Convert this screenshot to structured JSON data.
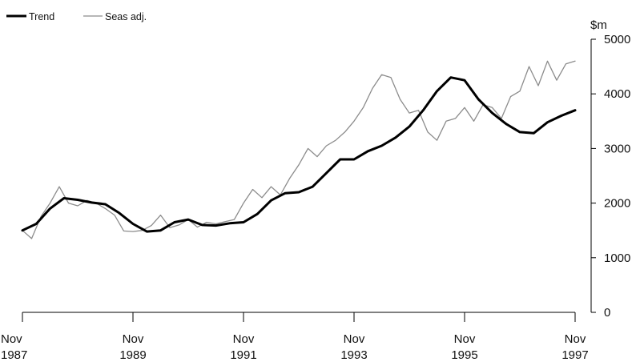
{
  "chart_data": {
    "type": "line",
    "title": "",
    "xlabel": "",
    "ylabel": "$m",
    "ylim": [
      0,
      5000
    ],
    "yticks": [
      "0",
      "1000",
      "2000",
      "3000",
      "4000",
      "5000"
    ],
    "xlim": [
      "1987-11",
      "1997-11"
    ],
    "xticks": [
      {
        "month": "Nov",
        "year": "1987"
      },
      {
        "month": "Nov",
        "year": "1989"
      },
      {
        "month": "Nov",
        "year": "1991"
      },
      {
        "month": "Nov",
        "year": "1993"
      },
      {
        "month": "Nov",
        "year": "1995"
      },
      {
        "month": "Nov",
        "year": "1997"
      }
    ],
    "grid": false,
    "legend_position": "top-left",
    "series": [
      {
        "name": "Trend",
        "color": "#000000",
        "style": "thick",
        "points": [
          [
            "1987-11",
            1500
          ],
          [
            "1988-02",
            1620
          ],
          [
            "1988-05",
            1900
          ],
          [
            "1988-08",
            2090
          ],
          [
            "1988-11",
            2060
          ],
          [
            "1989-02",
            2010
          ],
          [
            "1989-05",
            1980
          ],
          [
            "1989-08",
            1820
          ],
          [
            "1989-11",
            1620
          ],
          [
            "1990-02",
            1480
          ],
          [
            "1990-05",
            1500
          ],
          [
            "1990-08",
            1650
          ],
          [
            "1990-11",
            1700
          ],
          [
            "1991-02",
            1600
          ],
          [
            "1991-05",
            1590
          ],
          [
            "1991-08",
            1630
          ],
          [
            "1991-11",
            1650
          ],
          [
            "1992-02",
            1800
          ],
          [
            "1992-05",
            2050
          ],
          [
            "1992-08",
            2180
          ],
          [
            "1992-11",
            2200
          ],
          [
            "1993-02",
            2300
          ],
          [
            "1993-05",
            2550
          ],
          [
            "1993-08",
            2800
          ],
          [
            "1993-11",
            2800
          ],
          [
            "1994-02",
            2950
          ],
          [
            "1994-05",
            3050
          ],
          [
            "1994-08",
            3200
          ],
          [
            "1994-11",
            3400
          ],
          [
            "1995-02",
            3700
          ],
          [
            "1995-05",
            4050
          ],
          [
            "1995-08",
            4300
          ],
          [
            "1995-11",
            4250
          ],
          [
            "1996-02",
            3900
          ],
          [
            "1996-05",
            3650
          ],
          [
            "1996-08",
            3450
          ],
          [
            "1996-11",
            3300
          ],
          [
            "1997-02",
            3280
          ],
          [
            "1997-05",
            3480
          ],
          [
            "1997-08",
            3600
          ],
          [
            "1997-11",
            3700
          ]
        ]
      },
      {
        "name": "Seas adj.",
        "color": "#8c8c8c",
        "style": "thin",
        "points": [
          [
            "1987-11",
            1500
          ],
          [
            "1988-01",
            1350
          ],
          [
            "1988-03",
            1750
          ],
          [
            "1988-05",
            2000
          ],
          [
            "1988-07",
            2300
          ],
          [
            "1988-09",
            2000
          ],
          [
            "1988-11",
            1950
          ],
          [
            "1989-01",
            2050
          ],
          [
            "1989-03",
            2000
          ],
          [
            "1989-05",
            1900
          ],
          [
            "1989-07",
            1780
          ],
          [
            "1989-09",
            1490
          ],
          [
            "1989-11",
            1480
          ],
          [
            "1990-01",
            1500
          ],
          [
            "1990-03",
            1590
          ],
          [
            "1990-05",
            1780
          ],
          [
            "1990-07",
            1550
          ],
          [
            "1990-09",
            1600
          ],
          [
            "1990-11",
            1700
          ],
          [
            "1991-01",
            1560
          ],
          [
            "1991-03",
            1650
          ],
          [
            "1991-05",
            1620
          ],
          [
            "1991-07",
            1660
          ],
          [
            "1991-09",
            1700
          ],
          [
            "1991-11",
            2000
          ],
          [
            "1992-01",
            2250
          ],
          [
            "1992-03",
            2100
          ],
          [
            "1992-05",
            2300
          ],
          [
            "1992-07",
            2150
          ],
          [
            "1992-09",
            2450
          ],
          [
            "1992-11",
            2700
          ],
          [
            "1993-01",
            3000
          ],
          [
            "1993-03",
            2850
          ],
          [
            "1993-05",
            3050
          ],
          [
            "1993-07",
            3150
          ],
          [
            "1993-09",
            3300
          ],
          [
            "1993-11",
            3500
          ],
          [
            "1994-01",
            3750
          ],
          [
            "1994-03",
            4100
          ],
          [
            "1994-05",
            4350
          ],
          [
            "1994-07",
            4300
          ],
          [
            "1994-09",
            3900
          ],
          [
            "1994-11",
            3650
          ],
          [
            "1995-01",
            3700
          ],
          [
            "1995-03",
            3300
          ],
          [
            "1995-05",
            3150
          ],
          [
            "1995-07",
            3500
          ],
          [
            "1995-09",
            3550
          ],
          [
            "1995-11",
            3750
          ],
          [
            "1996-01",
            3500
          ],
          [
            "1996-03",
            3800
          ],
          [
            "1996-05",
            3750
          ],
          [
            "1996-07",
            3550
          ],
          [
            "1996-09",
            3950
          ],
          [
            "1996-11",
            4050
          ],
          [
            "1997-01",
            4500
          ],
          [
            "1997-03",
            4150
          ],
          [
            "1997-05",
            4600
          ],
          [
            "1997-07",
            4250
          ],
          [
            "1997-09",
            4550
          ],
          [
            "1997-11",
            4600
          ]
        ]
      }
    ]
  }
}
